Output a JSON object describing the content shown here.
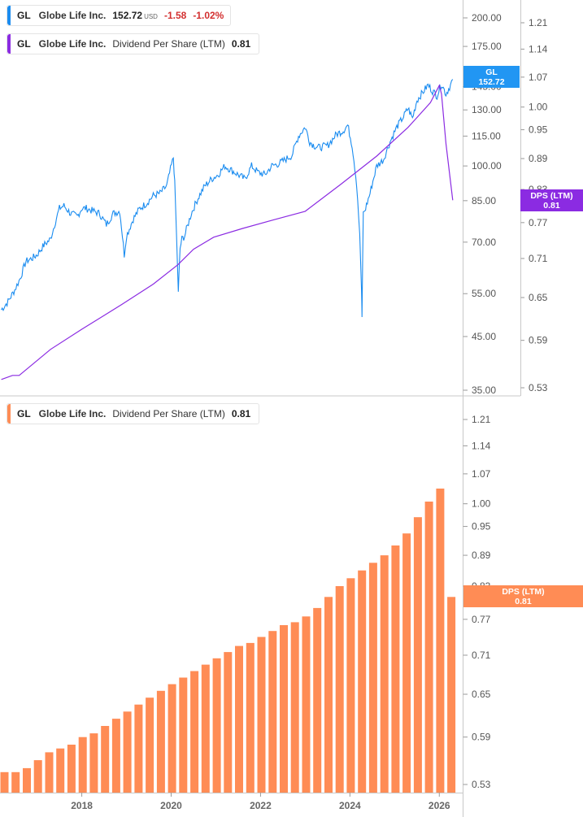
{
  "legend_top": {
    "symbol": "GL",
    "name": "Globe Life Inc.",
    "price": "152.72",
    "currency": "USD",
    "change": "-1.58",
    "change_pct": "-1.02%"
  },
  "legend_dps_top": {
    "symbol": "GL",
    "name": "Globe Life Inc.",
    "metric": "Dividend Per Share (LTM)",
    "value": "0.81"
  },
  "legend_dps_bottom": {
    "symbol": "GL",
    "name": "Globe Life Inc.",
    "metric": "Dividend Per Share (LTM)",
    "value": "0.81"
  },
  "tags": {
    "price_tag_symbol": "GL",
    "price_tag_value": "152.72",
    "dps_tag_label": "DPS (LTM)",
    "dps_tag_value": "0.81"
  },
  "colors": {
    "price_line": "#1a8cf0",
    "dps_line": "#8b2be2",
    "dps_tag": "#8b2be2",
    "bars": "#ff8c55",
    "bars_tag": "#ff8c55",
    "price_tag": "#2196f3",
    "negative": "#d32f2f"
  },
  "chart_data": [
    {
      "type": "line",
      "title": "",
      "xlabel": "",
      "ylabel": "",
      "y_scale": "log",
      "ylim": [
        33,
        230
      ],
      "yticks": [
        "200.00",
        "175.00",
        "145.00",
        "130.00",
        "115.00",
        "100.00",
        "85.00",
        "70.00",
        "55.00",
        "45.00",
        "35.00"
      ],
      "y2_scale": "log",
      "y2lim": [
        0.52,
        1.27
      ],
      "y2ticks": [
        "1.21",
        "1.14",
        "1.07",
        "1.00",
        "0.95",
        "0.89",
        "0.83",
        "0.77",
        "0.71",
        "0.65",
        "0.59",
        "0.53"
      ],
      "series": [
        {
          "name": "GL",
          "axis": "left",
          "x": [
            2016.2,
            2016.35,
            2016.5,
            2016.62,
            2016.75,
            2016.9,
            2017.0,
            2017.15,
            2017.3,
            2017.5,
            2017.6,
            2017.75,
            2017.9,
            2018.0,
            2018.1,
            2018.25,
            2018.4,
            2018.55,
            2018.7,
            2018.85,
            2018.95,
            2019.0,
            2019.15,
            2019.3,
            2019.45,
            2019.6,
            2019.75,
            2019.9,
            2020.05,
            2020.08,
            2020.12,
            2020.16,
            2020.2,
            2020.24,
            2020.3,
            2020.45,
            2020.6,
            2020.75,
            2020.9,
            2021.05,
            2021.2,
            2021.35,
            2021.5,
            2021.65,
            2021.8,
            2021.95,
            2022.1,
            2022.25,
            2022.4,
            2022.55,
            2022.7,
            2022.85,
            2023.0,
            2023.1,
            2023.2,
            2023.3,
            2023.5,
            2023.7,
            2023.85,
            2023.95,
            2024.05,
            2024.15,
            2024.22,
            2024.26,
            2024.27,
            2024.3,
            2024.35,
            2024.45,
            2024.6,
            2024.75,
            2024.9,
            2025.05,
            2025.2,
            2025.3,
            2025.4,
            2025.5,
            2025.6,
            2025.75,
            2025.85,
            2025.95,
            2026.05,
            2026.15,
            2026.25,
            2026.3
          ],
          "y": [
            51,
            53,
            56,
            59,
            64,
            65,
            66,
            69,
            71,
            82,
            83,
            80,
            79,
            82,
            82,
            81,
            80,
            76,
            80,
            81,
            66,
            72,
            78,
            82,
            84,
            87,
            88,
            91,
            104,
            92,
            72,
            55,
            68,
            71,
            72,
            80,
            86,
            91,
            94,
            96,
            100,
            98,
            96,
            94,
            100,
            97,
            96,
            100,
            101,
            103,
            105,
            115,
            120,
            112,
            110,
            109,
            110,
            116,
            118,
            121,
            110,
            92,
            72,
            56,
            49,
            80,
            82,
            88,
            100,
            103,
            112,
            120,
            126,
            131,
            125,
            136,
            140,
            146,
            142,
            139,
            147,
            140,
            146,
            150
          ]
        },
        {
          "name": "DPS (LTM)",
          "axis": "right",
          "x": [
            2016.2,
            2016.45,
            2016.6,
            2017.3,
            2018.0,
            2018.9,
            2019.6,
            2020.15,
            2020.5,
            2020.95,
            2021.6,
            2022.3,
            2023.0,
            2023.8,
            2024.6,
            2025.3,
            2025.8,
            2026.0,
            2026.05,
            2026.15,
            2026.3
          ],
          "y": [
            0.54,
            0.545,
            0.545,
            0.578,
            0.605,
            0.64,
            0.67,
            0.7,
            0.725,
            0.745,
            0.76,
            0.775,
            0.79,
            0.84,
            0.895,
            0.955,
            1.01,
            1.05,
            1.03,
            0.92,
            0.81
          ]
        }
      ]
    },
    {
      "type": "bar",
      "title": "",
      "xlabel": "",
      "ylabel": "",
      "y_scale": "log",
      "ylim": [
        0.52,
        1.28
      ],
      "yticks": [
        "1.21",
        "1.14",
        "1.07",
        "1.00",
        "0.95",
        "0.89",
        "0.83",
        "0.77",
        "0.71",
        "0.65",
        "0.59",
        "0.53"
      ],
      "x_tick_labels": [
        "2018",
        "2020",
        "2022",
        "2024",
        "2026"
      ],
      "series": [
        {
          "name": "DPS (LTM)",
          "x": [
            2016.27,
            2016.52,
            2016.77,
            2017.02,
            2017.27,
            2017.52,
            2017.77,
            2018.02,
            2018.27,
            2018.52,
            2018.77,
            2019.02,
            2019.27,
            2019.52,
            2019.77,
            2020.02,
            2020.27,
            2020.52,
            2020.77,
            2021.02,
            2021.27,
            2021.52,
            2021.77,
            2022.02,
            2022.27,
            2022.52,
            2022.77,
            2023.02,
            2023.27,
            2023.52,
            2023.77,
            2024.02,
            2024.27,
            2024.52,
            2024.77,
            2025.02,
            2025.27,
            2025.52,
            2025.77,
            2026.02,
            2026.27
          ],
          "values": [
            0.545,
            0.545,
            0.55,
            0.56,
            0.57,
            0.575,
            0.58,
            0.59,
            0.595,
            0.605,
            0.615,
            0.625,
            0.635,
            0.645,
            0.655,
            0.665,
            0.675,
            0.685,
            0.695,
            0.705,
            0.715,
            0.725,
            0.73,
            0.74,
            0.75,
            0.76,
            0.765,
            0.775,
            0.79,
            0.81,
            0.83,
            0.845,
            0.86,
            0.875,
            0.89,
            0.91,
            0.935,
            0.97,
            1.005,
            1.035,
            0.81
          ]
        }
      ]
    }
  ]
}
